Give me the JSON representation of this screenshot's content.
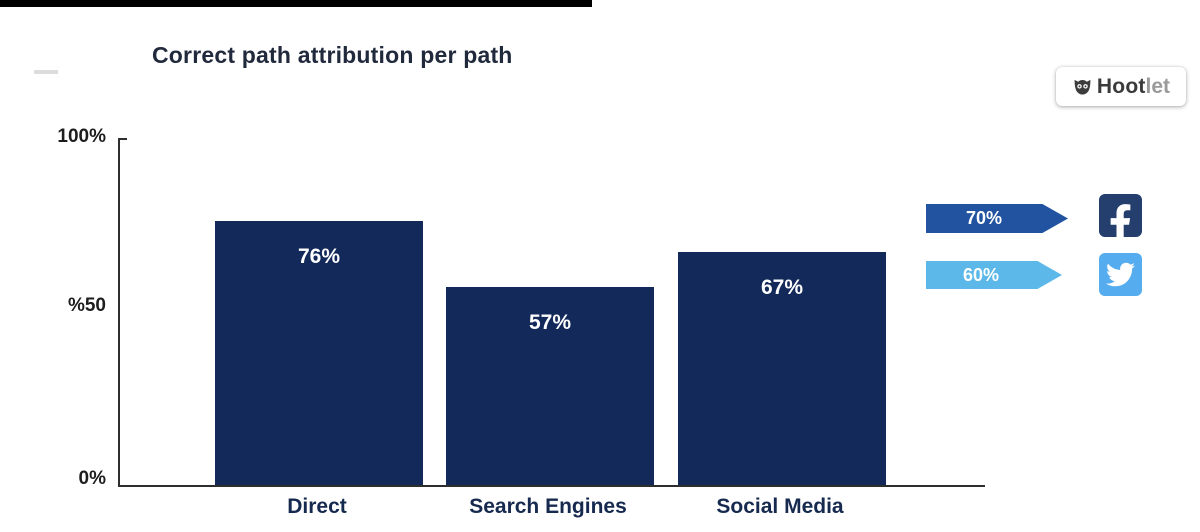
{
  "chart": {
    "title": "Correct path attribution per path",
    "y_ticks": [
      "100%",
      "%50",
      "0%"
    ],
    "bars": [
      {
        "label": "Direct",
        "value": "76%"
      },
      {
        "label": "Search Engines",
        "value": "57%"
      },
      {
        "label": "Social Media",
        "value": "67%"
      }
    ]
  },
  "callouts": [
    {
      "platform": "Facebook",
      "value": "70%",
      "color": "#2153a0"
    },
    {
      "platform": "Twitter",
      "value": "60%",
      "color": "#5cb8e8"
    }
  ],
  "logo": {
    "text_bold": "Hoot",
    "text_light": "let"
  },
  "colors": {
    "bar": "#13295a",
    "facebook_tile": "#243e6e",
    "twitter_tile": "#55acee",
    "axis": "#2e2e2e"
  },
  "chart_data": {
    "type": "bar",
    "categories": [
      "Direct",
      "Search Engines",
      "Social Media"
    ],
    "values": [
      76,
      57,
      67
    ],
    "title": "Correct path attribution per path",
    "xlabel": "",
    "ylabel": "",
    "ylim": [
      0,
      100
    ],
    "y_tick_labels": [
      "0%",
      "%50",
      "100%"
    ],
    "grid": false,
    "legend": "none",
    "annotations": [
      {
        "label": "Facebook",
        "value": 70
      },
      {
        "label": "Twitter",
        "value": 60
      }
    ]
  }
}
